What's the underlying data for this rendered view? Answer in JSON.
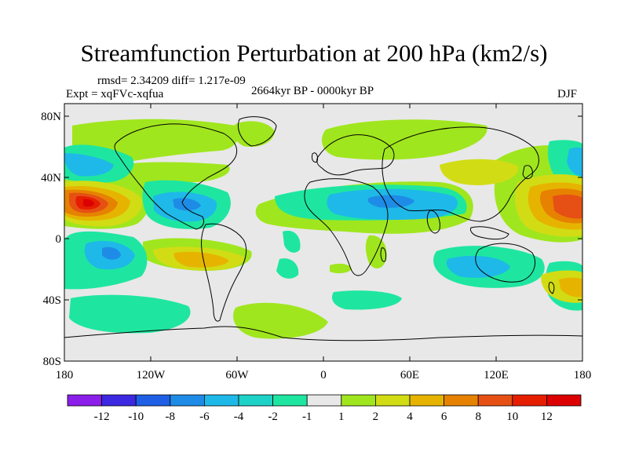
{
  "title": "Streamfunction Perturbation at 200 hPa (km2/s)",
  "stats": "rmsd= 2.34209 diff= 1.217e-09",
  "experiment": "Expt = xqFVc-xqfua",
  "period": "2664kyr BP - 0000kyr BP",
  "season": "DJF",
  "y_axis_labels": [
    "80N",
    "40N",
    "0",
    "40S",
    "80S"
  ],
  "x_axis_labels": [
    "180",
    "120W",
    "60W",
    "0",
    "60E",
    "120E",
    "180"
  ],
  "colorbar": {
    "labels": [
      "-12",
      "-10",
      "-8",
      "-6",
      "-4",
      "-2",
      "-1",
      "1",
      "2",
      "4",
      "6",
      "8",
      "10",
      "12"
    ],
    "colors": [
      "#8c1eea",
      "#3c28e0",
      "#1e5fe6",
      "#1e8ce6",
      "#1eb9e8",
      "#1ed2c8",
      "#1ee6a0",
      "#e8e8e8",
      "#a0e61e",
      "#d2dc14",
      "#e6b400",
      "#e68200",
      "#e65014",
      "#e61e00",
      "#dc0000"
    ]
  },
  "colors": {
    "background": "#e8e8e8",
    "coastline": "#000000"
  }
}
